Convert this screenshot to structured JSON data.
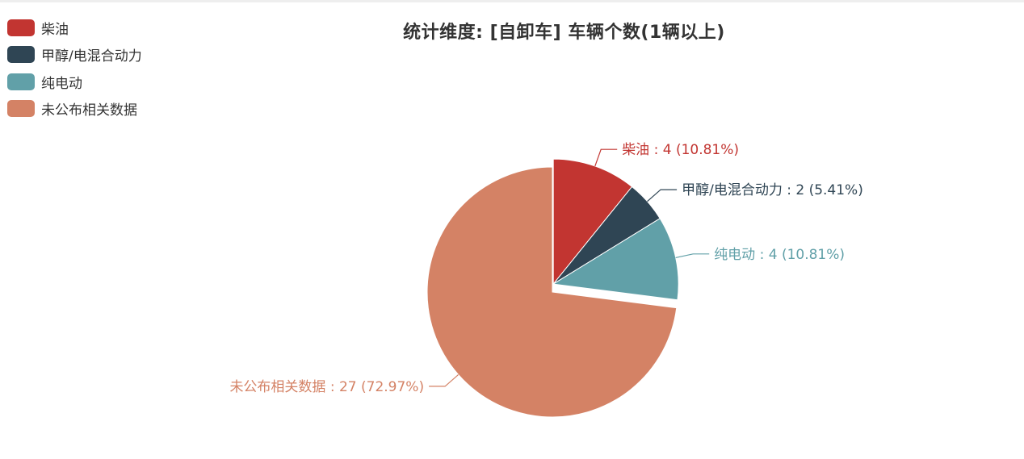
{
  "chart_data": {
    "type": "pie",
    "title": "统计维度: [自卸车] 车辆个数(1辆以上)",
    "categories": [
      "柴油",
      "甲醇/电混合动力",
      "纯电动",
      "未公布相关数据"
    ],
    "values": [
      4,
      2,
      4,
      27
    ],
    "percents": [
      "10.81%",
      "5.41%",
      "10.81%",
      "72.97%"
    ],
    "colors": [
      "#c23531",
      "#2f4554",
      "#61a0a8",
      "#d48265"
    ],
    "data_labels": [
      "柴油 : 4 (10.81%)",
      "甲醇/电混合动力 : 2 (5.41%)",
      "纯电动 : 4 (10.81%)",
      "未公布相关数据 : 27 (72.97%)"
    ],
    "legend_position": "top-left",
    "exploded_slice": "柴油, 甲醇/电混合动力, 纯电动"
  }
}
